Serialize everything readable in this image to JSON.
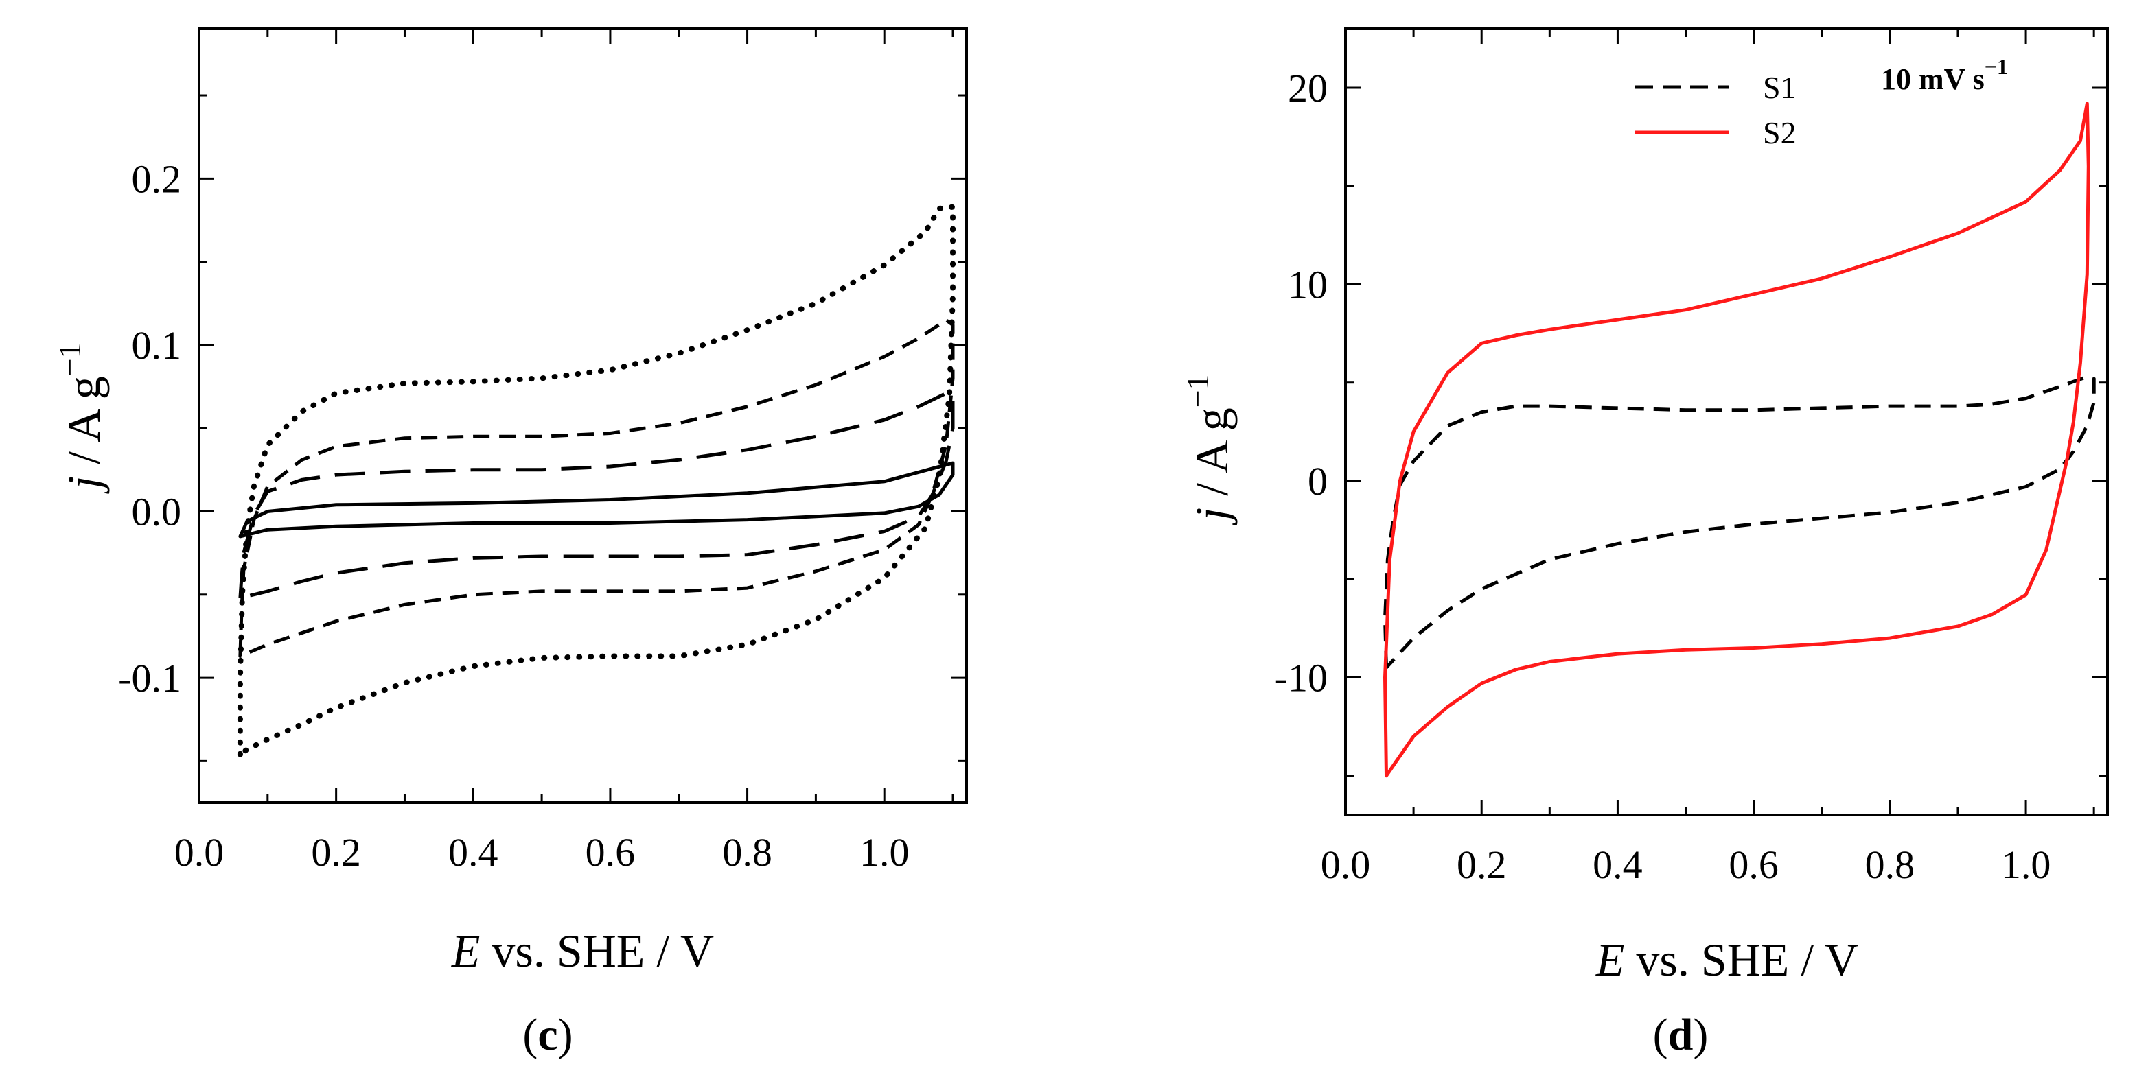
{
  "figure": {
    "panels": [
      {
        "id": "c",
        "label_open": "(",
        "label_letter": "c",
        "label_close": ")"
      },
      {
        "id": "d",
        "label_open": "(",
        "label_letter": "d",
        "label_close": ")"
      }
    ]
  },
  "chart_data": [
    {
      "panel": "c",
      "type": "line",
      "title": "",
      "xlabel_var": "E",
      "xlabel_rest": " vs. SHE / V",
      "ylabel_var": "j",
      "ylabel_rest": " / A g",
      "ylabel_sup": "−1",
      "xlim": [
        0.0,
        1.12
      ],
      "ylim": [
        -0.175,
        0.29
      ],
      "xticks": [
        0.0,
        0.2,
        0.4,
        0.6,
        0.8,
        1.0
      ],
      "xtick_labels": [
        "0.0",
        "0.2",
        "0.4",
        "0.6",
        "0.8",
        "1.0"
      ],
      "yticks": [
        -0.1,
        0.0,
        0.1,
        0.2
      ],
      "ytick_labels": [
        "-0.1",
        "0.0",
        "0.1",
        "0.2"
      ],
      "grid": false,
      "series": [
        {
          "style": "solid",
          "color": "#000000",
          "points": [
            [
              0.06,
              -0.015
            ],
            [
              0.07,
              -0.006
            ],
            [
              0.1,
              0.0
            ],
            [
              0.2,
              0.004
            ],
            [
              0.4,
              0.005
            ],
            [
              0.6,
              0.007
            ],
            [
              0.8,
              0.011
            ],
            [
              1.0,
              0.018
            ],
            [
              1.09,
              0.028
            ],
            [
              1.1,
              0.029
            ],
            [
              1.1,
              0.022
            ],
            [
              1.08,
              0.01
            ],
            [
              1.05,
              0.003
            ],
            [
              1.0,
              -0.001
            ],
            [
              0.8,
              -0.005
            ],
            [
              0.6,
              -0.007
            ],
            [
              0.4,
              -0.007
            ],
            [
              0.2,
              -0.009
            ],
            [
              0.1,
              -0.011
            ],
            [
              0.06,
              -0.015
            ]
          ]
        },
        {
          "style": "longdash",
          "color": "#000000",
          "points": [
            [
              0.06,
              -0.052
            ],
            [
              0.062,
              -0.04
            ],
            [
              0.065,
              -0.025
            ],
            [
              0.08,
              -0.002
            ],
            [
              0.1,
              0.012
            ],
            [
              0.15,
              0.019
            ],
            [
              0.2,
              0.022
            ],
            [
              0.3,
              0.024
            ],
            [
              0.4,
              0.025
            ],
            [
              0.5,
              0.025
            ],
            [
              0.6,
              0.027
            ],
            [
              0.7,
              0.031
            ],
            [
              0.8,
              0.037
            ],
            [
              0.9,
              0.045
            ],
            [
              1.0,
              0.055
            ],
            [
              1.05,
              0.063
            ],
            [
              1.09,
              0.071
            ],
            [
              1.1,
              0.07
            ],
            [
              1.1,
              0.05
            ],
            [
              1.09,
              0.03
            ],
            [
              1.07,
              0.01
            ],
            [
              1.05,
              -0.003
            ],
            [
              1.0,
              -0.012
            ],
            [
              0.9,
              -0.02
            ],
            [
              0.8,
              -0.026
            ],
            [
              0.7,
              -0.027
            ],
            [
              0.6,
              -0.027
            ],
            [
              0.5,
              -0.027
            ],
            [
              0.4,
              -0.028
            ],
            [
              0.3,
              -0.031
            ],
            [
              0.2,
              -0.037
            ],
            [
              0.15,
              -0.042
            ],
            [
              0.1,
              -0.048
            ],
            [
              0.06,
              -0.052
            ]
          ]
        },
        {
          "style": "shortdash",
          "color": "#000000",
          "points": [
            [
              0.06,
              -0.087
            ],
            [
              0.062,
              -0.06
            ],
            [
              0.065,
              -0.035
            ],
            [
              0.08,
              -0.005
            ],
            [
              0.1,
              0.015
            ],
            [
              0.15,
              0.031
            ],
            [
              0.2,
              0.039
            ],
            [
              0.3,
              0.044
            ],
            [
              0.4,
              0.045
            ],
            [
              0.5,
              0.045
            ],
            [
              0.6,
              0.047
            ],
            [
              0.7,
              0.053
            ],
            [
              0.8,
              0.063
            ],
            [
              0.9,
              0.076
            ],
            [
              1.0,
              0.093
            ],
            [
              1.05,
              0.104
            ],
            [
              1.09,
              0.115
            ],
            [
              1.1,
              0.112
            ],
            [
              1.1,
              0.08
            ],
            [
              1.09,
              0.04
            ],
            [
              1.07,
              0.01
            ],
            [
              1.05,
              -0.008
            ],
            [
              1.0,
              -0.023
            ],
            [
              0.9,
              -0.036
            ],
            [
              0.8,
              -0.046
            ],
            [
              0.7,
              -0.048
            ],
            [
              0.6,
              -0.048
            ],
            [
              0.5,
              -0.048
            ],
            [
              0.4,
              -0.05
            ],
            [
              0.3,
              -0.056
            ],
            [
              0.2,
              -0.066
            ],
            [
              0.15,
              -0.073
            ],
            [
              0.1,
              -0.08
            ],
            [
              0.06,
              -0.087
            ]
          ]
        },
        {
          "style": "dotted",
          "color": "#000000",
          "points": [
            [
              0.06,
              -0.146
            ],
            [
              0.06,
              -0.1
            ],
            [
              0.063,
              -0.05
            ],
            [
              0.07,
              -0.01
            ],
            [
              0.08,
              0.015
            ],
            [
              0.1,
              0.04
            ],
            [
              0.15,
              0.06
            ],
            [
              0.2,
              0.071
            ],
            [
              0.3,
              0.077
            ],
            [
              0.4,
              0.078
            ],
            [
              0.5,
              0.08
            ],
            [
              0.6,
              0.085
            ],
            [
              0.7,
              0.095
            ],
            [
              0.8,
              0.109
            ],
            [
              0.9,
              0.125
            ],
            [
              1.0,
              0.148
            ],
            [
              1.06,
              0.168
            ],
            [
              1.08,
              0.182
            ],
            [
              1.1,
              0.183
            ],
            [
              1.1,
              0.13
            ],
            [
              1.095,
              0.07
            ],
            [
              1.08,
              0.02
            ],
            [
              1.06,
              -0.01
            ],
            [
              1.0,
              -0.04
            ],
            [
              0.9,
              -0.065
            ],
            [
              0.8,
              -0.08
            ],
            [
              0.7,
              -0.087
            ],
            [
              0.6,
              -0.087
            ],
            [
              0.5,
              -0.088
            ],
            [
              0.4,
              -0.093
            ],
            [
              0.3,
              -0.103
            ],
            [
              0.2,
              -0.118
            ],
            [
              0.15,
              -0.128
            ],
            [
              0.1,
              -0.137
            ],
            [
              0.07,
              -0.143
            ],
            [
              0.06,
              -0.146
            ]
          ]
        }
      ]
    },
    {
      "panel": "d",
      "type": "line",
      "title": "",
      "xlabel_var": "E",
      "xlabel_rest": " vs. SHE / V",
      "ylabel_var": "j",
      "ylabel_rest": " / A g",
      "ylabel_sup": "−1",
      "xlim": [
        0.0,
        1.12
      ],
      "ylim": [
        -17,
        23
      ],
      "xticks": [
        0.0,
        0.2,
        0.4,
        0.6,
        0.8,
        1.0
      ],
      "xtick_labels": [
        "0.0",
        "0.2",
        "0.4",
        "0.6",
        "0.8",
        "1.0"
      ],
      "yticks": [
        -10,
        0,
        10,
        20
      ],
      "ytick_labels": [
        "-10",
        "0",
        "10",
        "20"
      ],
      "grid": false,
      "legend_position": "top-right",
      "annotation_main": "10 mV s",
      "annotation_sup": "−1",
      "series": [
        {
          "name": "S1",
          "style": "dashed",
          "color": "#000000",
          "points": [
            [
              0.06,
              -9.5
            ],
            [
              0.058,
              -7
            ],
            [
              0.062,
              -4
            ],
            [
              0.07,
              -2
            ],
            [
              0.08,
              -0.2
            ],
            [
              0.1,
              1.0
            ],
            [
              0.15,
              2.8
            ],
            [
              0.2,
              3.5
            ],
            [
              0.25,
              3.8
            ],
            [
              0.3,
              3.8
            ],
            [
              0.4,
              3.7
            ],
            [
              0.5,
              3.6
            ],
            [
              0.6,
              3.6
            ],
            [
              0.7,
              3.7
            ],
            [
              0.8,
              3.8
            ],
            [
              0.9,
              3.8
            ],
            [
              0.95,
              3.9
            ],
            [
              1.0,
              4.2
            ],
            [
              1.05,
              4.8
            ],
            [
              1.09,
              5.3
            ],
            [
              1.1,
              5.2
            ],
            [
              1.1,
              4.0
            ],
            [
              1.09,
              2.8
            ],
            [
              1.07,
              1.5
            ],
            [
              1.05,
              0.6
            ],
            [
              1.0,
              -0.3
            ],
            [
              0.9,
              -1.1
            ],
            [
              0.8,
              -1.6
            ],
            [
              0.7,
              -1.9
            ],
            [
              0.6,
              -2.2
            ],
            [
              0.5,
              -2.6
            ],
            [
              0.4,
              -3.2
            ],
            [
              0.3,
              -4.0
            ],
            [
              0.2,
              -5.5
            ],
            [
              0.15,
              -6.6
            ],
            [
              0.1,
              -8.0
            ],
            [
              0.06,
              -9.5
            ]
          ]
        },
        {
          "name": "S2",
          "style": "solid",
          "color": "#ff1a1a",
          "points": [
            [
              0.06,
              -15.0
            ],
            [
              0.058,
              -10
            ],
            [
              0.065,
              -4
            ],
            [
              0.08,
              0
            ],
            [
              0.1,
              2.5
            ],
            [
              0.15,
              5.5
            ],
            [
              0.2,
              7.0
            ],
            [
              0.25,
              7.4
            ],
            [
              0.3,
              7.7
            ],
            [
              0.4,
              8.2
            ],
            [
              0.5,
              8.7
            ],
            [
              0.6,
              9.5
            ],
            [
              0.7,
              10.3
            ],
            [
              0.8,
              11.4
            ],
            [
              0.9,
              12.6
            ],
            [
              1.0,
              14.2
            ],
            [
              1.05,
              15.8
            ],
            [
              1.08,
              17.3
            ],
            [
              1.09,
              19.2
            ],
            [
              1.092,
              16
            ],
            [
              1.09,
              10.5
            ],
            [
              1.08,
              6
            ],
            [
              1.07,
              3
            ],
            [
              1.06,
              1
            ],
            [
              1.05,
              -0.5
            ],
            [
              1.04,
              -2
            ],
            [
              1.03,
              -3.5
            ],
            [
              1.0,
              -5.8
            ],
            [
              0.95,
              -6.8
            ],
            [
              0.9,
              -7.4
            ],
            [
              0.8,
              -8.0
            ],
            [
              0.7,
              -8.3
            ],
            [
              0.6,
              -8.5
            ],
            [
              0.5,
              -8.6
            ],
            [
              0.4,
              -8.8
            ],
            [
              0.3,
              -9.2
            ],
            [
              0.25,
              -9.6
            ],
            [
              0.2,
              -10.3
            ],
            [
              0.15,
              -11.5
            ],
            [
              0.1,
              -13.0
            ],
            [
              0.06,
              -15.0
            ]
          ]
        }
      ]
    }
  ]
}
